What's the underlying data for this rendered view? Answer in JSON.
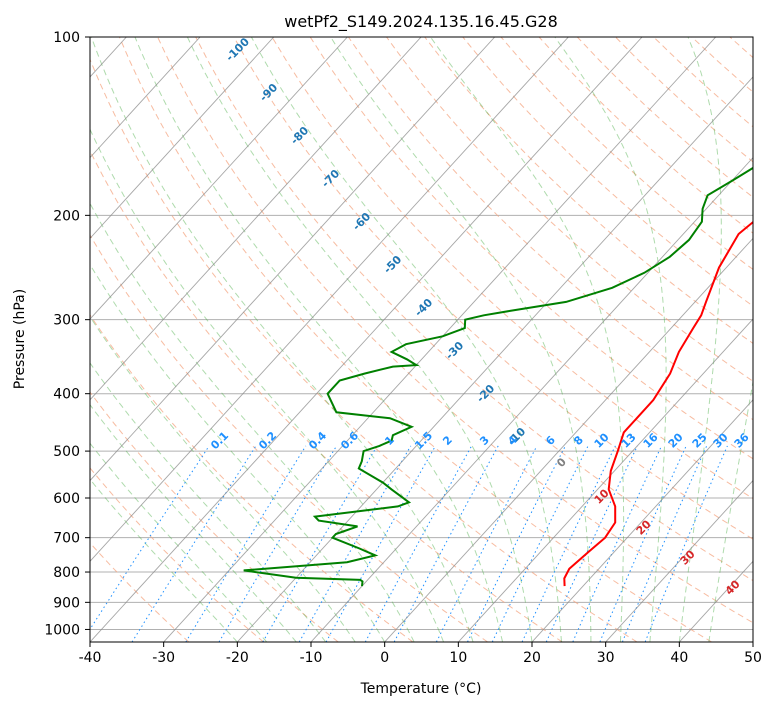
{
  "chart_data": {
    "type": "line",
    "title": "wetPf2_S149.2024.135.16.45.G28",
    "xlabel": "Temperature (°C)",
    "ylabel": "Pressure (hPa)",
    "xlim": [
      -40,
      50
    ],
    "ylim": [
      1050,
      100
    ],
    "x_ticks": [
      -40,
      -30,
      -20,
      -10,
      0,
      10,
      20,
      30,
      40,
      50
    ],
    "y_ticks": [
      100,
      200,
      300,
      400,
      500,
      600,
      700,
      800,
      900,
      1000
    ],
    "grid": true,
    "skew": "skew-T log-p",
    "series": [
      {
        "color": "#ff0000",
        "points": [
          [
            17.5,
            845
          ],
          [
            16.5,
            820
          ],
          [
            16.0,
            790
          ],
          [
            16.5,
            740
          ],
          [
            17.0,
            700
          ],
          [
            16.5,
            660
          ],
          [
            14.5,
            620
          ],
          [
            11.5,
            580
          ],
          [
            9.5,
            540
          ],
          [
            8.0,
            500
          ],
          [
            6.5,
            465
          ],
          [
            6.5,
            440
          ],
          [
            6.5,
            410
          ],
          [
            5.5,
            370
          ],
          [
            4.0,
            340
          ],
          [
            3.0,
            310
          ],
          [
            2.5,
            295
          ],
          [
            1.5,
            280
          ],
          [
            -1.0,
            245
          ],
          [
            -2.5,
            215
          ],
          [
            -2.0,
            205
          ],
          [
            -0.5,
            200
          ],
          [
            2.0,
            190
          ],
          [
            4.5,
            180
          ],
          [
            5.5,
            170
          ],
          [
            6.5,
            160
          ],
          [
            7.0,
            150
          ],
          [
            7.5,
            140
          ],
          [
            7.0,
            130
          ],
          [
            6.0,
            120
          ],
          [
            5.0,
            110
          ],
          [
            4.5,
            100
          ]
        ]
      },
      {
        "color": "#008000",
        "points": [
          [
            -10.0,
            845
          ],
          [
            -10.5,
            830
          ],
          [
            -11.0,
            825
          ],
          [
            -20.0,
            818
          ],
          [
            -28.0,
            795
          ],
          [
            -15.0,
            770
          ],
          [
            -12.0,
            750
          ],
          [
            -15.0,
            730
          ],
          [
            -20.0,
            700
          ],
          [
            -20.0,
            690
          ],
          [
            -18.0,
            670
          ],
          [
            -24.0,
            655
          ],
          [
            -25.0,
            645
          ],
          [
            -15.0,
            620
          ],
          [
            -14.0,
            610
          ],
          [
            -18.0,
            580
          ],
          [
            -20.0,
            565
          ],
          [
            -25.0,
            535
          ],
          [
            -25.5,
            520
          ],
          [
            -26.5,
            500
          ],
          [
            -25.0,
            490
          ],
          [
            -24.0,
            480
          ],
          [
            -24.5,
            470
          ],
          [
            -23.0,
            455
          ],
          [
            -27.0,
            440
          ],
          [
            -35.0,
            430
          ],
          [
            -38.5,
            400
          ],
          [
            -38.5,
            380
          ],
          [
            -36.0,
            370
          ],
          [
            -33.0,
            360
          ],
          [
            -30.0,
            358
          ],
          [
            -32.0,
            350
          ],
          [
            -35.0,
            340
          ],
          [
            -34.0,
            330
          ],
          [
            -30.0,
            320
          ],
          [
            -28.0,
            310
          ],
          [
            -29.0,
            300
          ],
          [
            -27.0,
            295
          ],
          [
            -24.0,
            290
          ],
          [
            -17.5,
            280
          ],
          [
            -13.0,
            265
          ],
          [
            -10.5,
            250
          ],
          [
            -9.0,
            235
          ],
          [
            -8.5,
            220
          ],
          [
            -9.0,
            205
          ],
          [
            -10.5,
            195
          ],
          [
            -11.5,
            185
          ],
          [
            -10.0,
            175
          ],
          [
            -8.5,
            165
          ],
          [
            -9.0,
            155
          ],
          [
            -11.5,
            145
          ],
          [
            -12.0,
            135
          ],
          [
            -10.0,
            125
          ],
          [
            -7.0,
            115
          ],
          [
            -4.5,
            105
          ],
          [
            -3.5,
            100
          ]
        ]
      }
    ],
    "dry_adiabat_labels": [
      -100,
      -90,
      -80,
      -70,
      -60,
      -50,
      -40,
      -30,
      -20,
      -10
    ],
    "moist_adiabat_labels": [
      0,
      10,
      20,
      30,
      40
    ],
    "mixing_ratio_labels": [
      "0.1",
      "0.2",
      "0.4",
      "0.6",
      "1",
      "1.5",
      "2",
      "3",
      "4",
      "6",
      "8",
      "10",
      "13",
      "16",
      "20",
      "25",
      "30",
      "36"
    ],
    "mixing_ratio_values": [
      0.1,
      0.2,
      0.4,
      0.6,
      1,
      1.5,
      2,
      3,
      4,
      6,
      8,
      10,
      13,
      16,
      20,
      25,
      30,
      36
    ],
    "colors": {
      "temperature": "#ff0000",
      "dewpoint": "#008000",
      "dry_adiabat": "#f4a582",
      "dry_adiabat_label": "#1f77b4",
      "moist_adiabat": "#4daf4a",
      "moist_adiabat_label": "#d62728",
      "mixing_ratio": "#1e90ff",
      "isotherm": "#888888"
    }
  }
}
